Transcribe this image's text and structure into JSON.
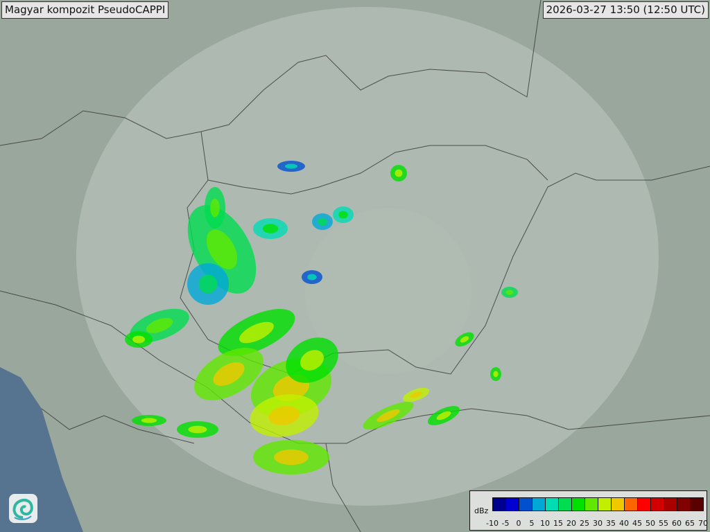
{
  "header": {
    "title": "Magyar kompozit  PseudoCAPPI",
    "timestamp": "2026-03-27 13:50 (12:50 UTC)"
  },
  "logo": {
    "icon": "swirl-logo-icon"
  },
  "legend": {
    "unit": "dBz",
    "ticks": [
      "-10",
      "-5",
      "0",
      "5",
      "10",
      "15",
      "20",
      "25",
      "30",
      "35",
      "40",
      "45",
      "50",
      "55",
      "60",
      "65",
      "70"
    ],
    "colors": [
      "#00008f",
      "#0000d0",
      "#0050d0",
      "#00a8d8",
      "#00dcb4",
      "#00dc50",
      "#00e000",
      "#60e800",
      "#c0f000",
      "#f0c800",
      "#ff6400",
      "#ff0000",
      "#d20000",
      "#aa0000",
      "#820000",
      "#5a0000"
    ]
  },
  "map": {
    "land_color": "#9aa79c",
    "sea_color": "#4f6f8c",
    "coverage_color": "#c8d3cc"
  }
}
